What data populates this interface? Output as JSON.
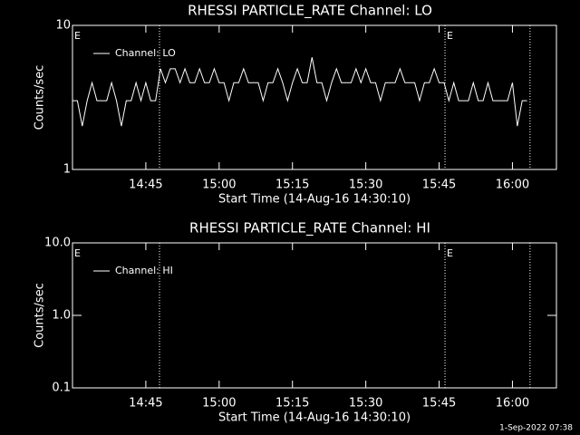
{
  "chart_data": [
    {
      "type": "line",
      "title": "RHESSI PARTICLE_RATE Channel: LO",
      "xlabel": "Start Time (14-Aug-16 14:30:10)",
      "ylabel": "Counts/sec",
      "xlim": [
        0,
        99
      ],
      "xticks": [
        {
          "value": 15,
          "label": "14:45"
        },
        {
          "value": 30,
          "label": "15:00"
        },
        {
          "value": 45,
          "label": "15:15"
        },
        {
          "value": 60,
          "label": "15:30"
        },
        {
          "value": 75,
          "label": "15:45"
        },
        {
          "value": 90,
          "label": "16:00"
        }
      ],
      "ylim": [
        1,
        10
      ],
      "yticks": [
        1,
        10
      ],
      "yscale": "log",
      "vlines": [
        17.8,
        76.2,
        93.6
      ],
      "annotations": [
        {
          "text": "E",
          "x": 0
        },
        {
          "text": "E",
          "x": 76.2
        }
      ],
      "x": [
        0,
        1,
        2,
        3,
        4,
        5,
        6,
        7,
        8,
        9,
        10,
        11,
        12,
        13,
        14,
        15,
        16,
        17,
        18,
        19,
        20,
        21,
        22,
        23,
        24,
        25,
        26,
        27,
        28,
        29,
        30,
        31,
        32,
        33,
        34,
        35,
        36,
        37,
        38,
        39,
        40,
        41,
        42,
        43,
        44,
        45,
        46,
        47,
        48,
        49,
        50,
        51,
        52,
        53,
        54,
        55,
        56,
        57,
        58,
        59,
        60,
        61,
        62,
        63,
        64,
        65,
        66,
        67,
        68,
        69,
        70,
        71,
        72,
        73,
        74,
        75,
        76,
        77,
        78,
        79,
        80,
        81,
        82,
        83,
        84,
        85,
        86,
        87,
        88,
        89,
        90,
        91,
        92,
        93
      ],
      "series": [
        {
          "name": "Channel: LO",
          "color": "#ffffff",
          "values": [
            3,
            3,
            2,
            3,
            4,
            3,
            3,
            3,
            4,
            3,
            2,
            3,
            3,
            4,
            3,
            4,
            3,
            3,
            5,
            4,
            5,
            5,
            4,
            5,
            4,
            4,
            5,
            4,
            4,
            5,
            4,
            4,
            3,
            4,
            4,
            5,
            4,
            4,
            4,
            3,
            4,
            4,
            5,
            4,
            3,
            4,
            5,
            4,
            4,
            6,
            4,
            4,
            3,
            4,
            5,
            4,
            4,
            4,
            5,
            4,
            5,
            4,
            4,
            3,
            4,
            4,
            4,
            5,
            4,
            4,
            4,
            3,
            4,
            4,
            5,
            4,
            4,
            3,
            4,
            3,
            3,
            3,
            4,
            3,
            3,
            4,
            3,
            3,
            3,
            3,
            4,
            2,
            3,
            3
          ]
        }
      ]
    },
    {
      "type": "line",
      "title": "RHESSI PARTICLE_RATE Channel: HI",
      "xlabel": "Start Time (14-Aug-16 14:30:10)",
      "ylabel": "Counts/sec",
      "xlim": [
        0,
        99
      ],
      "xticks": [
        {
          "value": 15,
          "label": "14:45"
        },
        {
          "value": 30,
          "label": "15:00"
        },
        {
          "value": 45,
          "label": "15:15"
        },
        {
          "value": 60,
          "label": "15:30"
        },
        {
          "value": 75,
          "label": "15:45"
        },
        {
          "value": 90,
          "label": "16:00"
        }
      ],
      "ylim": [
        0.1,
        10
      ],
      "yticks": [
        {
          "value": 0.1,
          "label": "0.1"
        },
        {
          "value": 1,
          "label": "1.0"
        },
        {
          "value": 10,
          "label": "10.0"
        }
      ],
      "yscale": "log",
      "vlines": [
        17.8,
        76.2,
        93.6
      ],
      "annotations": [
        {
          "text": "E",
          "x": 0
        },
        {
          "text": "E",
          "x": 76.2
        }
      ],
      "x": [],
      "series": [
        {
          "name": "Channel: HI",
          "color": "#ffffff",
          "values": []
        }
      ]
    }
  ],
  "footer": "1-Sep-2022 07:38"
}
